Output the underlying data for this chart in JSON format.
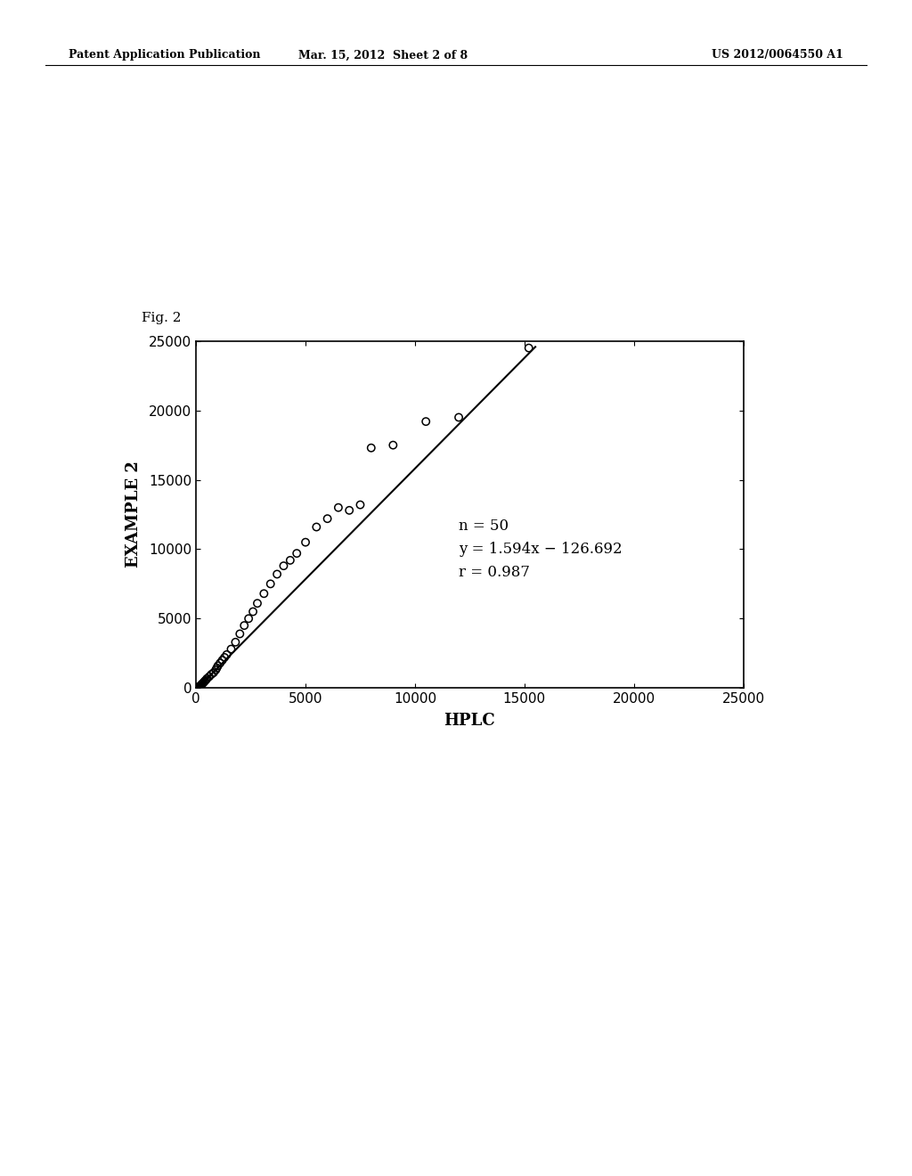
{
  "header_left": "Patent Application Publication",
  "header_center": "Mar. 15, 2012  Sheet 2 of 8",
  "header_right": "US 2012/0064550 A1",
  "fig_label": "Fig. 2",
  "xlabel": "HPLC",
  "ylabel": "EXAMPLE 2",
  "xlim": [
    0,
    25000
  ],
  "ylim": [
    0,
    25000
  ],
  "xticks": [
    0,
    5000,
    10000,
    15000,
    20000,
    25000
  ],
  "yticks": [
    0,
    5000,
    10000,
    15000,
    20000,
    25000
  ],
  "annotation_line1": "n = 50",
  "annotation_line2": "y = 1.594x − 126.692",
  "annotation_line3": "r = 0.987",
  "slope": 1.594,
  "intercept": -126.692,
  "scatter_x": [
    50,
    80,
    100,
    120,
    150,
    180,
    200,
    220,
    240,
    260,
    280,
    320,
    360,
    400,
    450,
    500,
    600,
    700,
    800,
    900,
    950,
    1000,
    1100,
    1200,
    1300,
    1400,
    1600,
    1800,
    2000,
    2200,
    2400,
    2600,
    2800,
    3100,
    3400,
    3700,
    4000,
    4300,
    4600,
    5000,
    5500,
    6000,
    6500,
    7000,
    7500,
    8000,
    9000,
    10500,
    12000,
    15200
  ],
  "scatter_y": [
    20,
    40,
    60,
    80,
    100,
    130,
    160,
    190,
    220,
    260,
    300,
    360,
    420,
    500,
    580,
    680,
    820,
    980,
    1100,
    1300,
    1450,
    1600,
    1800,
    2000,
    2200,
    2400,
    2800,
    3300,
    3900,
    4500,
    5000,
    5500,
    6100,
    6800,
    7500,
    8200,
    8800,
    9200,
    9700,
    10500,
    11600,
    12200,
    13000,
    12800,
    13200,
    17300,
    17500,
    19200,
    19500,
    24500
  ],
  "background_color": "#ffffff",
  "scatter_facecolor": "none",
  "scatter_edgecolor": "#000000",
  "line_color": "#000000",
  "marker_size": 6,
  "line_width": 1.5,
  "tick_fontsize": 11,
  "label_fontsize": 13,
  "header_fontsize": 9,
  "annotation_fontsize": 12,
  "fig_label_fontsize": 11
}
